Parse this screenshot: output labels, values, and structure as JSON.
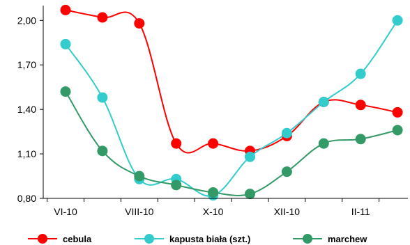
{
  "chart_data": {
    "type": "line",
    "x": [
      "VI-10",
      "VII-10",
      "VIII-10",
      "IX-10",
      "X-10",
      "XI-10",
      "XII-10",
      "I-11",
      "II-11",
      "III-11"
    ],
    "x_tick_labels": [
      "VI-10",
      "VIII-10",
      "X-10",
      "XII-10",
      "II-11"
    ],
    "y_tick_labels": [
      "0,80",
      "1,10",
      "1,40",
      "1,70",
      "2,00"
    ],
    "ylim": [
      0.8,
      2.1
    ],
    "yticks": [
      0.8,
      1.1,
      1.4,
      1.7,
      2.0
    ],
    "grid": false,
    "legend_position": "bottom",
    "series": [
      {
        "name": "cebula",
        "color": "#ff0000",
        "values": [
          2.07,
          2.02,
          1.98,
          1.17,
          1.17,
          1.12,
          1.22,
          1.45,
          1.43,
          1.38
        ]
      },
      {
        "name": "kapusta biała (szt.)",
        "color": "#33cccc",
        "values": [
          1.84,
          1.48,
          0.93,
          0.93,
          0.82,
          1.08,
          1.24,
          1.45,
          1.64,
          2.0
        ]
      },
      {
        "name": "marchew",
        "color": "#339966",
        "values": [
          1.52,
          1.12,
          0.95,
          0.89,
          0.84,
          0.83,
          0.98,
          1.17,
          1.2,
          1.26
        ]
      }
    ]
  }
}
